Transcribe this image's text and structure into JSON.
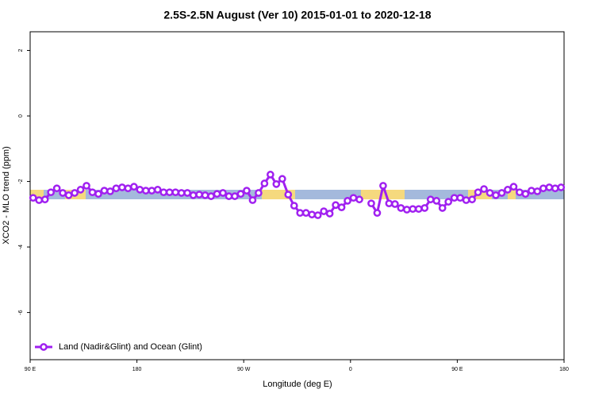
{
  "chart_data": {
    "type": "line",
    "title": "2.5S-2.5N August (Ver 10)   2015-01-01 to 2020-12-18",
    "xlabel": "Longitude (deg E)",
    "ylabel": "XCO2 - MLO trend (ppm)",
    "xlim": [
      90,
      540
    ],
    "xticks": [
      {
        "value": 90,
        "label": "90 E"
      },
      {
        "value": 180,
        "label": "180"
      },
      {
        "value": 270,
        "label": "90 W"
      },
      {
        "value": 360,
        "label": "0"
      },
      {
        "value": 450,
        "label": "90 E"
      },
      {
        "value": 540,
        "label": "180"
      }
    ],
    "ylim": [
      -7.44,
      2.57
    ],
    "yticks": [
      2,
      0,
      -2,
      -4,
      -6
    ],
    "legend": "bottom-left",
    "x": [
      92.5,
      97.5,
      102.5,
      107.5,
      112.5,
      117.5,
      122.5,
      127.5,
      132.5,
      137.5,
      142.5,
      147.5,
      152.5,
      157.5,
      162.5,
      167.5,
      172.5,
      177.5,
      182.5,
      187.5,
      192.5,
      197.5,
      202.5,
      207.5,
      212.5,
      217.5,
      222.5,
      227.5,
      232.5,
      237.5,
      242.5,
      247.5,
      252.5,
      257.5,
      262.5,
      267.5,
      272.5,
      277.5,
      282.5,
      287.5,
      292.5,
      297.5,
      302.5,
      307.5,
      312.5,
      317.5,
      322.5,
      327.5,
      332.5,
      337.5,
      342.5,
      347.5,
      352.5,
      357.5,
      362.5,
      367.5,
      372.5,
      377.5,
      382.5,
      387.5,
      392.5,
      397.5,
      402.5,
      407.5,
      412.5,
      417.5,
      422.5,
      427.5,
      432.5,
      437.5,
      442.5,
      447.5,
      452.5,
      457.5,
      462.5,
      467.5,
      472.5,
      477.5,
      482.5,
      487.5,
      492.5,
      497.5,
      502.5,
      507.5,
      512.5,
      517.5,
      522.5,
      527.5,
      532.5,
      537.5
    ],
    "series": [
      {
        "name": "Land (Nadir&Glint) and Ocean (Glint)",
        "color": "#a020f0",
        "values": [
          -2.5,
          -2.57,
          -2.55,
          -2.33,
          -2.21,
          -2.35,
          -2.42,
          -2.35,
          -2.25,
          -2.13,
          -2.33,
          -2.38,
          -2.28,
          -2.3,
          -2.21,
          -2.18,
          -2.21,
          -2.16,
          -2.25,
          -2.28,
          -2.28,
          -2.25,
          -2.33,
          -2.33,
          -2.33,
          -2.35,
          -2.35,
          -2.42,
          -2.4,
          -2.42,
          -2.45,
          -2.38,
          -2.35,
          -2.45,
          -2.45,
          -2.38,
          -2.28,
          -2.57,
          -2.35,
          -2.06,
          -1.79,
          -2.08,
          -1.92,
          -2.4,
          -2.74,
          -2.96,
          -2.96,
          -3.01,
          -3.03,
          -2.91,
          -2.98,
          -2.72,
          -2.79,
          -2.59,
          -2.5,
          -2.55,
          null,
          -2.67,
          -2.96,
          -2.13,
          -2.67,
          -2.69,
          -2.81,
          -2.86,
          -2.84,
          -2.84,
          -2.81,
          -2.55,
          -2.59,
          -2.81,
          -2.62,
          -2.5,
          -2.5,
          -2.57,
          -2.55,
          -2.33,
          -2.23,
          -2.35,
          -2.42,
          -2.35,
          -2.25,
          -2.16,
          -2.33,
          -2.38,
          -2.28,
          -2.3,
          -2.21,
          -2.18,
          -2.21,
          -2.18
        ]
      }
    ]
  }
}
